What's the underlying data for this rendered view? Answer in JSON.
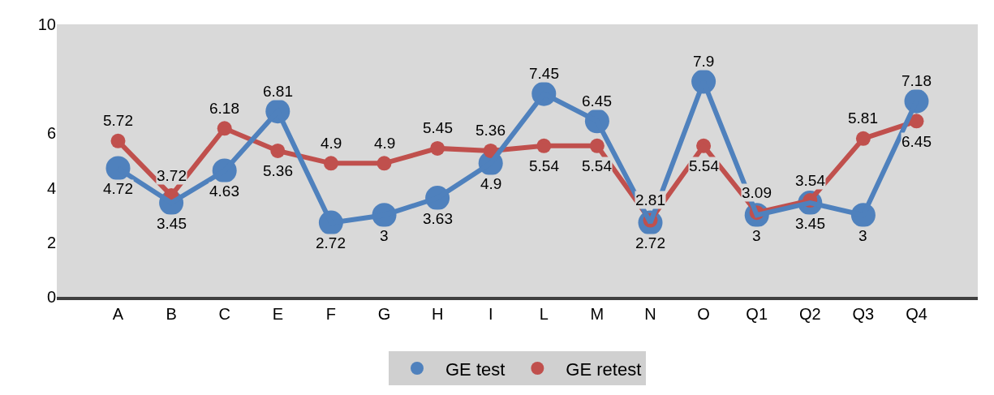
{
  "chart_data": {
    "type": "line",
    "categories": [
      "A",
      "B",
      "C",
      "E",
      "F",
      "G",
      "H",
      "I",
      "L",
      "M",
      "N",
      "O",
      "Q1",
      "Q2",
      "Q3",
      "Q4"
    ],
    "series": [
      {
        "name": "GE test",
        "color": "#4f81bd",
        "values": [
          4.72,
          3.45,
          4.63,
          6.81,
          2.72,
          3,
          3.63,
          4.9,
          7.45,
          6.45,
          2.72,
          7.9,
          3,
          3.45,
          3,
          7.18
        ]
      },
      {
        "name": "GE retest",
        "color": "#c0504d",
        "values": [
          5.72,
          3.72,
          6.18,
          5.36,
          4.9,
          4.9,
          5.45,
          5.36,
          5.54,
          5.54,
          2.81,
          5.54,
          3.09,
          3.54,
          5.81,
          6.45
        ]
      }
    ],
    "ylim": [
      0,
      10
    ],
    "yticks": [
      0,
      2,
      4,
      6,
      10
    ],
    "grid": false,
    "legend": "bottom",
    "marker": "circle",
    "line_style": "solid",
    "data_labels": true
  }
}
